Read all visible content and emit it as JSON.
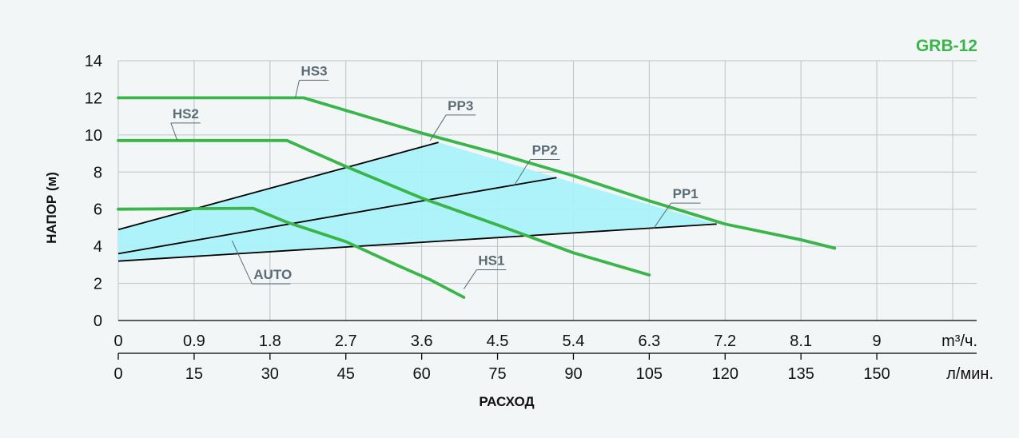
{
  "header": {
    "model": "GRB-12"
  },
  "colors": {
    "background": "#f3f6f7",
    "grid": "#b8c4c8",
    "curve": "#39b54a",
    "operating_area": "#a9f2f9",
    "axis": "#000000",
    "label": "#5a6b75"
  },
  "chart_data": {
    "type": "line",
    "title": "GRB-12",
    "ylabel": "НАПОР (м)",
    "xlabel": "РАСХОД",
    "x_unit_primary": "m³/ч.",
    "x_unit_secondary": "л/мин.",
    "ylim": [
      0,
      14
    ],
    "xlim": [
      0,
      9.9
    ],
    "grid": true,
    "yticks": [
      "0",
      "2",
      "4",
      "6",
      "8",
      "10",
      "12",
      "14"
    ],
    "xticks_primary": [
      "0",
      "0.9",
      "1.8",
      "2.7",
      "3.6",
      "4.5",
      "5.4",
      "6.3",
      "7.2",
      "8.1",
      "9"
    ],
    "xticks_secondary": [
      "0",
      "15",
      "30",
      "45",
      "60",
      "75",
      "90",
      "105",
      "120",
      "135",
      "150"
    ],
    "operating_area_label": "AUTO",
    "operating_area": [
      [
        0,
        3.2
      ],
      [
        0,
        4.9
      ],
      [
        3.8,
        9.6
      ],
      [
        5.2,
        7.7
      ],
      [
        7.1,
        5.2
      ]
    ],
    "series": [
      {
        "name": "HS3",
        "kind": "pump",
        "points": [
          [
            0,
            12
          ],
          [
            2.2,
            12
          ],
          [
            3.6,
            10.1
          ],
          [
            4.5,
            9.0
          ],
          [
            5.4,
            7.8
          ],
          [
            6.3,
            6.45
          ],
          [
            7.2,
            5.2
          ],
          [
            8.1,
            4.35
          ],
          [
            8.5,
            3.9
          ]
        ]
      },
      {
        "name": "HS2",
        "kind": "pump",
        "points": [
          [
            0,
            9.7
          ],
          [
            2.0,
            9.7
          ],
          [
            2.7,
            8.3
          ],
          [
            3.6,
            6.6
          ],
          [
            4.5,
            5.15
          ],
          [
            5.4,
            3.65
          ],
          [
            6.0,
            2.85
          ],
          [
            6.3,
            2.45
          ]
        ]
      },
      {
        "name": "HS1",
        "kind": "pump",
        "points": [
          [
            0,
            6.0
          ],
          [
            1.6,
            6.05
          ],
          [
            2.0,
            5.3
          ],
          [
            2.7,
            4.25
          ],
          [
            3.3,
            3.0
          ],
          [
            3.7,
            2.2
          ],
          [
            4.1,
            1.25
          ]
        ]
      },
      {
        "name": "PP3",
        "kind": "system",
        "points": [
          [
            0,
            4.9
          ],
          [
            3.8,
            9.6
          ]
        ]
      },
      {
        "name": "PP2",
        "kind": "system",
        "points": [
          [
            0,
            3.6
          ],
          [
            5.2,
            7.7
          ]
        ]
      },
      {
        "name": "PP1",
        "kind": "system",
        "points": [
          [
            0,
            3.2
          ],
          [
            7.1,
            5.2
          ]
        ]
      }
    ],
    "annotations": [
      {
        "text": "HS3",
        "series": "HS3",
        "anchor": [
          2.1,
          12.0
        ]
      },
      {
        "text": "HS2",
        "series": "HS2",
        "anchor": [
          0.7,
          9.7
        ]
      },
      {
        "text": "HS1",
        "series": "HS1",
        "anchor": [
          4.1,
          1.7
        ]
      },
      {
        "text": "PP3",
        "series": "PP3",
        "anchor": [
          3.7,
          9.7
        ]
      },
      {
        "text": "PP2",
        "series": "PP2",
        "anchor": [
          4.7,
          7.3
        ]
      },
      {
        "text": "PP1",
        "series": "PP1",
        "anchor": [
          6.35,
          4.95
        ]
      },
      {
        "text": "AUTO",
        "series": "operating_area",
        "anchor": [
          1.35,
          4.3
        ]
      }
    ]
  }
}
